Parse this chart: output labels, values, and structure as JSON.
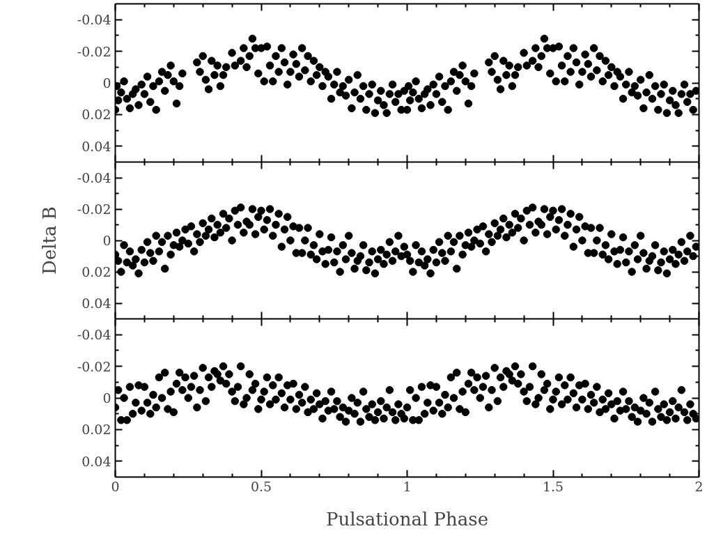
{
  "chart_data": [
    {
      "type": "scatter",
      "marker": "circle",
      "color": "#000000",
      "xlim": [
        0,
        2
      ],
      "ylim": [
        0.05,
        -0.05
      ],
      "tick_labels": "y",
      "xticks": [
        0,
        {
          "value": 0.1,
          "label": null
        },
        {
          "value": 0.2,
          "label": null
        },
        {
          "value": 0.3,
          "label": null
        },
        {
          "value": 0.4,
          "label": null
        },
        0.5,
        {
          "value": 0.6,
          "label": null
        },
        {
          "value": 0.7,
          "label": null
        },
        {
          "value": 0.8,
          "label": null
        },
        {
          "value": 0.9,
          "label": null
        },
        1,
        {
          "value": 1.1,
          "label": null
        },
        {
          "value": 1.2,
          "label": null
        },
        {
          "value": 1.3,
          "label": null
        },
        {
          "value": 1.4,
          "label": null
        },
        1.5,
        {
          "value": 1.6,
          "label": null
        },
        {
          "value": 1.7,
          "label": null
        },
        {
          "value": 1.8,
          "label": null
        },
        {
          "value": 1.9,
          "label": null
        },
        2
      ],
      "yticks": [
        -0.04,
        {
          "value": -0.03,
          "label": null
        },
        -0.02,
        {
          "value": -0.01,
          "label": null
        },
        0,
        {
          "value": 0.01,
          "label": null
        },
        0.02,
        {
          "value": 0.03,
          "label": null
        },
        0.04
      ],
      "x": [
        0,
        0.005,
        0.01,
        0.02,
        0.03,
        0.04,
        0.05,
        0.06,
        0.07,
        0.08,
        0.09,
        0.1,
        0.11,
        0.12,
        0.13,
        0.14,
        0.15,
        0.16,
        0.17,
        0.18,
        0.19,
        0.2,
        0.21,
        0.22,
        0.23,
        0.28,
        0.29,
        0.3,
        0.31,
        0.32,
        0.33,
        0.34,
        0.35,
        0.36,
        0.37,
        0.38,
        0.4,
        0.41,
        0.43,
        0.44,
        0.45,
        0.46,
        0.47,
        0.48,
        0.49,
        0.5,
        0.51,
        0.52,
        0.53,
        0.54,
        0.55,
        0.56,
        0.57,
        0.58,
        0.59,
        0.6,
        0.61,
        0.62,
        0.63,
        0.64,
        0.65,
        0.66,
        0.67,
        0.68,
        0.69,
        0.7,
        0.71,
        0.72,
        0.73,
        0.74,
        0.75,
        0.76,
        0.77,
        0.78,
        0.79,
        0.8,
        0.81,
        0.82,
        0.83,
        0.84,
        0.85,
        0.86,
        0.87,
        0.88,
        0.89,
        0.9,
        0.91,
        0.92,
        0.93,
        0.94,
        0.95,
        0.96,
        0.97,
        0.98,
        0.99,
        1,
        1.005,
        1.01,
        1.02,
        1.03,
        1.04,
        1.05,
        1.06,
        1.07,
        1.08,
        1.09,
        1.1,
        1.11,
        1.12,
        1.13,
        1.14,
        1.15,
        1.16,
        1.17,
        1.18,
        1.19,
        1.2,
        1.21,
        1.22,
        1.23,
        1.28,
        1.29,
        1.3,
        1.31,
        1.32,
        1.33,
        1.34,
        1.35,
        1.36,
        1.37,
        1.38,
        1.4,
        1.41,
        1.43,
        1.44,
        1.45,
        1.46,
        1.47,
        1.48,
        1.49,
        1.5,
        1.51,
        1.52,
        1.53,
        1.54,
        1.55,
        1.56,
        1.57,
        1.58,
        1.59,
        1.6,
        1.61,
        1.62,
        1.63,
        1.64,
        1.65,
        1.66,
        1.67,
        1.68,
        1.69,
        1.7,
        1.71,
        1.72,
        1.73,
        1.74,
        1.75,
        1.76,
        1.77,
        1.78,
        1.79,
        1.8,
        1.81,
        1.82,
        1.83,
        1.84,
        1.85,
        1.86,
        1.87,
        1.88,
        1.89,
        1.9,
        1.91,
        1.92,
        1.93,
        1.94,
        1.95,
        1.96,
        1.97,
        1.98,
        1.99
      ],
      "values": [
        0.017,
        0.002,
        0.011,
        0.006,
        -0.001,
        0.01,
        0.016,
        0.007,
        0.004,
        0.014,
        0.001,
        0.007,
        -0.004,
        0.012,
        0.002,
        0.017,
        -0.001,
        -0.007,
        0.005,
        -0.005,
        -0.011,
        -0.001,
        0.013,
        0.002,
        -0.006,
        -0.013,
        -0.007,
        -0.017,
        -0.002,
        0.004,
        -0.014,
        -0.005,
        -0.011,
        0.002,
        -0.005,
        -0.01,
        -0.019,
        -0.011,
        -0.014,
        -0.022,
        -0.01,
        -0.017,
        -0.028,
        -0.022,
        -0.006,
        -0.022,
        -0.001,
        -0.023,
        -0.011,
        -0.001,
        -0.017,
        -0.007,
        -0.022,
        -0.013,
        0.001,
        -0.007,
        -0.018,
        -0.012,
        -0.004,
        -0.022,
        -0.008,
        -0.017,
        -0.001,
        -0.014,
        -0.005,
        -0.01,
        0.002,
        -0.007,
        -0.004,
        0.01,
        0.001,
        -0.007,
        0.006,
        0.002,
        0.008,
        -0.002,
        0.016,
        0.006,
        -0.005,
        0.01,
        0.002,
        0.017,
        0.007,
        0.001,
        0.019,
        0.011,
        0.005,
        0.014,
        0.019,
        0.007,
        0.001,
        0.012,
        0.007,
        0.017,
        0.005,
        0.017,
        0.002,
        0.011,
        0.006,
        -0.001,
        0.01,
        0.016,
        0.007,
        0.004,
        0.014,
        0.001,
        0.007,
        -0.004,
        0.012,
        0.002,
        0.017,
        -0.001,
        -0.007,
        0.005,
        -0.005,
        -0.011,
        -0.001,
        0.013,
        0.002,
        -0.006,
        -0.013,
        -0.007,
        -0.017,
        -0.002,
        0.004,
        -0.014,
        -0.005,
        -0.011,
        0.002,
        -0.005,
        -0.01,
        -0.019,
        -0.011,
        -0.014,
        -0.022,
        -0.01,
        -0.017,
        -0.028,
        -0.022,
        -0.006,
        -0.022,
        -0.001,
        -0.023,
        -0.011,
        -0.001,
        -0.017,
        -0.007,
        -0.022,
        -0.013,
        0.001,
        -0.007,
        -0.018,
        -0.012,
        -0.004,
        -0.022,
        -0.008,
        -0.017,
        -0.001,
        -0.014,
        -0.005,
        -0.01,
        0.002,
        -0.007,
        -0.004,
        0.01,
        0.001,
        -0.007,
        0.006,
        0.002,
        0.008,
        -0.002,
        0.016,
        0.006,
        -0.005,
        0.01,
        0.002,
        0.017,
        0.007,
        0.001,
        0.019,
        0.011,
        0.005,
        0.014,
        0.019,
        0.007,
        0.001,
        0.012,
        0.007,
        0.017,
        0.005
      ]
    },
    {
      "type": "scatter",
      "marker": "circle",
      "color": "#000000",
      "xlim": [
        0,
        2
      ],
      "ylim": [
        0.05,
        -0.05
      ],
      "tick_labels": "y",
      "ylabel": "Delta B",
      "xticks": [
        0,
        {
          "value": 0.1,
          "label": null
        },
        {
          "value": 0.2,
          "label": null
        },
        {
          "value": 0.3,
          "label": null
        },
        {
          "value": 0.4,
          "label": null
        },
        0.5,
        {
          "value": 0.6,
          "label": null
        },
        {
          "value": 0.7,
          "label": null
        },
        {
          "value": 0.8,
          "label": null
        },
        {
          "value": 0.9,
          "label": null
        },
        1,
        {
          "value": 1.1,
          "label": null
        },
        {
          "value": 1.2,
          "label": null
        },
        {
          "value": 1.3,
          "label": null
        },
        {
          "value": 1.4,
          "label": null
        },
        1.5,
        {
          "value": 1.6,
          "label": null
        },
        {
          "value": 1.7,
          "label": null
        },
        {
          "value": 1.8,
          "label": null
        },
        {
          "value": 1.9,
          "label": null
        },
        2
      ],
      "yticks": [
        -0.04,
        {
          "value": -0.03,
          "label": null
        },
        -0.02,
        {
          "value": -0.01,
          "label": null
        },
        0,
        {
          "value": 0.01,
          "label": null
        },
        0.02,
        {
          "value": 0.03,
          "label": null
        },
        0.04
      ],
      "x": [
        0,
        0.01,
        0.02,
        0.03,
        0.04,
        0.05,
        0.06,
        0.07,
        0.08,
        0.09,
        0.1,
        0.11,
        0.12,
        0.13,
        0.14,
        0.15,
        0.16,
        0.17,
        0.18,
        0.19,
        0.2,
        0.21,
        0.22,
        0.23,
        0.24,
        0.25,
        0.26,
        0.27,
        0.28,
        0.29,
        0.3,
        0.31,
        0.32,
        0.33,
        0.34,
        0.35,
        0.36,
        0.37,
        0.38,
        0.39,
        0.4,
        0.41,
        0.42,
        0.43,
        0.44,
        0.45,
        0.46,
        0.47,
        0.48,
        0.49,
        0.5,
        0.51,
        0.52,
        0.53,
        0.54,
        0.55,
        0.56,
        0.57,
        0.58,
        0.59,
        0.6,
        0.61,
        0.62,
        0.63,
        0.64,
        0.65,
        0.66,
        0.67,
        0.68,
        0.69,
        0.7,
        0.71,
        0.72,
        0.73,
        0.74,
        0.75,
        0.76,
        0.77,
        0.78,
        0.79,
        0.8,
        0.81,
        0.82,
        0.83,
        0.84,
        0.85,
        0.86,
        0.87,
        0.88,
        0.89,
        0.9,
        0.91,
        0.92,
        0.93,
        0.94,
        0.95,
        0.96,
        0.97,
        0.98,
        0.99,
        1,
        1.01,
        1.02,
        1.03,
        1.04,
        1.05,
        1.06,
        1.07,
        1.08,
        1.09,
        1.1,
        1.11,
        1.12,
        1.13,
        1.14,
        1.15,
        1.16,
        1.17,
        1.18,
        1.19,
        1.2,
        1.21,
        1.22,
        1.23,
        1.24,
        1.25,
        1.26,
        1.27,
        1.28,
        1.29,
        1.3,
        1.31,
        1.32,
        1.33,
        1.34,
        1.35,
        1.36,
        1.37,
        1.38,
        1.39,
        1.4,
        1.41,
        1.42,
        1.43,
        1.44,
        1.45,
        1.46,
        1.47,
        1.48,
        1.49,
        1.5,
        1.51,
        1.52,
        1.53,
        1.54,
        1.55,
        1.56,
        1.57,
        1.58,
        1.59,
        1.6,
        1.61,
        1.62,
        1.63,
        1.64,
        1.65,
        1.66,
        1.67,
        1.68,
        1.69,
        1.7,
        1.71,
        1.72,
        1.73,
        1.74,
        1.75,
        1.76,
        1.77,
        1.78,
        1.79,
        1.8,
        1.81,
        1.82,
        1.83,
        1.84,
        1.85,
        1.86,
        1.87,
        1.88,
        1.89,
        1.9,
        1.91,
        1.92,
        1.93,
        1.94,
        1.95,
        1.96,
        1.97,
        1.98,
        1.99
      ],
      "values": [
        0.009,
        0.013,
        0.02,
        0.003,
        0.014,
        0.007,
        0.016,
        0.012,
        0.021,
        0.006,
        0.014,
        0.001,
        0.008,
        0.013,
        -0.003,
        0.007,
        0.001,
        0.018,
        -0.003,
        0.009,
        0.003,
        -0.005,
        0.004,
        0,
        -0.007,
        0.002,
        -0.009,
        0.007,
        -0.004,
        0.001,
        -0.011,
        -0.003,
        -0.007,
        -0.014,
        -0.002,
        -0.01,
        -0.005,
        -0.017,
        -0.008,
        -0.014,
        0,
        -0.019,
        -0.01,
        -0.021,
        -0.005,
        -0.012,
        -0.01,
        -0.02,
        -0.004,
        -0.015,
        -0.019,
        -0.007,
        -0.013,
        -0.02,
        -0.003,
        -0.01,
        -0.017,
        0.004,
        -0.007,
        -0.015,
        0,
        -0.009,
        0.008,
        -0.008,
        0.008,
        0,
        -0.008,
        0.009,
        0.003,
        0.012,
        -0.004,
        0.007,
        0.015,
        0.006,
        -0.002,
        0.014,
        0.007,
        0.02,
        0.003,
        0.012,
        -0.003,
        0.008,
        0.018,
        0.013,
        0.01,
        0.003,
        0.019,
        0.014,
        0.007,
        0.021,
        0.012,
        0.006,
        0.015,
        0.009,
        0.001,
        0.013,
        0.007,
        -0.003,
        0.01,
        0.004,
        0.009,
        0.013,
        0.02,
        0.003,
        0.014,
        0.007,
        0.016,
        0.012,
        0.021,
        0.006,
        0.014,
        0.001,
        0.008,
        0.013,
        -0.003,
        0.007,
        0.001,
        0.018,
        -0.003,
        0.009,
        0.003,
        -0.005,
        0.004,
        0,
        -0.007,
        0.002,
        -0.009,
        0.007,
        -0.004,
        0.001,
        -0.011,
        -0.003,
        -0.007,
        -0.014,
        -0.002,
        -0.01,
        -0.005,
        -0.017,
        -0.008,
        -0.014,
        0,
        -0.019,
        -0.01,
        -0.021,
        -0.005,
        -0.012,
        -0.01,
        -0.02,
        -0.004,
        -0.015,
        -0.019,
        -0.007,
        -0.013,
        -0.02,
        -0.003,
        -0.01,
        -0.017,
        0.004,
        -0.007,
        -0.015,
        0,
        -0.009,
        0.008,
        -0.008,
        0.008,
        0,
        -0.008,
        0.009,
        0.003,
        0.012,
        -0.004,
        0.007,
        0.015,
        0.006,
        -0.002,
        0.014,
        0.007,
        0.02,
        0.003,
        0.012,
        -0.003,
        0.008,
        0.018,
        0.013,
        0.01,
        0.003,
        0.019,
        0.014,
        0.007,
        0.021,
        0.012,
        0.006,
        0.015,
        0.009,
        0.001,
        0.013,
        0.007,
        -0.003,
        0.01,
        0.004
      ]
    },
    {
      "type": "scatter",
      "marker": "circle",
      "color": "#000000",
      "xlim": [
        0,
        2
      ],
      "ylim": [
        0.05,
        -0.05
      ],
      "xlabel": "Pulsational Phase",
      "xticks": [
        0,
        {
          "value": 0.1,
          "label": null
        },
        {
          "value": 0.2,
          "label": null
        },
        {
          "value": 0.3,
          "label": null
        },
        {
          "value": 0.4,
          "label": null
        },
        0.5,
        {
          "value": 0.6,
          "label": null
        },
        {
          "value": 0.7,
          "label": null
        },
        {
          "value": 0.8,
          "label": null
        },
        {
          "value": 0.9,
          "label": null
        },
        1,
        {
          "value": 1.1,
          "label": null
        },
        {
          "value": 1.2,
          "label": null
        },
        {
          "value": 1.3,
          "label": null
        },
        {
          "value": 1.4,
          "label": null
        },
        1.5,
        {
          "value": 1.6,
          "label": null
        },
        {
          "value": 1.7,
          "label": null
        },
        {
          "value": 1.8,
          "label": null
        },
        {
          "value": 1.9,
          "label": null
        },
        2
      ],
      "yticks": [
        -0.04,
        {
          "value": -0.03,
          "label": null
        },
        -0.02,
        {
          "value": -0.01,
          "label": null
        },
        0,
        {
          "value": 0.01,
          "label": null
        },
        0.02,
        {
          "value": 0.03,
          "label": null
        },
        0.04
      ],
      "x": [
        0,
        0.01,
        0.02,
        0.03,
        0.04,
        0.05,
        0.06,
        0.07,
        0.08,
        0.09,
        0.1,
        0.11,
        0.12,
        0.13,
        0.14,
        0.15,
        0.16,
        0.17,
        0.18,
        0.19,
        0.2,
        0.21,
        0.22,
        0.23,
        0.24,
        0.25,
        0.26,
        0.27,
        0.28,
        0.29,
        0.3,
        0.31,
        0.32,
        0.33,
        0.34,
        0.35,
        0.36,
        0.37,
        0.38,
        0.39,
        0.4,
        0.41,
        0.42,
        0.43,
        0.44,
        0.45,
        0.46,
        0.47,
        0.48,
        0.49,
        0.5,
        0.51,
        0.52,
        0.53,
        0.54,
        0.55,
        0.56,
        0.57,
        0.58,
        0.59,
        0.6,
        0.61,
        0.62,
        0.63,
        0.64,
        0.65,
        0.66,
        0.67,
        0.68,
        0.69,
        0.7,
        0.71,
        0.72,
        0.73,
        0.74,
        0.75,
        0.76,
        0.77,
        0.78,
        0.79,
        0.8,
        0.81,
        0.82,
        0.83,
        0.84,
        0.85,
        0.86,
        0.87,
        0.88,
        0.89,
        0.9,
        0.91,
        0.92,
        0.93,
        0.94,
        0.95,
        0.96,
        0.97,
        0.98,
        0.99,
        1,
        1.01,
        1.02,
        1.03,
        1.04,
        1.05,
        1.06,
        1.07,
        1.08,
        1.09,
        1.1,
        1.11,
        1.12,
        1.13,
        1.14,
        1.15,
        1.16,
        1.17,
        1.18,
        1.19,
        1.2,
        1.21,
        1.22,
        1.23,
        1.24,
        1.25,
        1.26,
        1.27,
        1.28,
        1.29,
        1.3,
        1.31,
        1.32,
        1.33,
        1.34,
        1.35,
        1.36,
        1.37,
        1.38,
        1.39,
        1.4,
        1.41,
        1.42,
        1.43,
        1.44,
        1.45,
        1.46,
        1.47,
        1.48,
        1.49,
        1.5,
        1.51,
        1.52,
        1.53,
        1.54,
        1.55,
        1.56,
        1.57,
        1.58,
        1.59,
        1.6,
        1.61,
        1.62,
        1.63,
        1.64,
        1.65,
        1.66,
        1.67,
        1.68,
        1.69,
        1.7,
        1.71,
        1.72,
        1.73,
        1.74,
        1.75,
        1.76,
        1.77,
        1.78,
        1.79,
        1.8,
        1.81,
        1.82,
        1.83,
        1.84,
        1.85,
        1.86,
        1.87,
        1.88,
        1.89,
        1.9,
        1.91,
        1.92,
        1.93,
        1.94,
        1.95,
        1.96,
        1.97,
        1.98,
        1.99
      ],
      "values": [
        0.006,
        -0.005,
        0.014,
        0,
        0.014,
        -0.007,
        0.01,
        0.003,
        -0.008,
        0.008,
        -0.007,
        0.003,
        0.01,
        -0.002,
        0.006,
        -0.013,
        0,
        -0.016,
        0.007,
        -0.004,
        0.009,
        -0.009,
        -0.016,
        -0.005,
        -0.013,
        0,
        -0.007,
        -0.014,
        0.006,
        -0.005,
        -0.019,
        0.002,
        -0.013,
        -0.007,
        -0.017,
        -0.015,
        -0.011,
        -0.02,
        -0.009,
        -0.015,
        -0.004,
        0.002,
        -0.007,
        -0.02,
        0.004,
        0,
        -0.015,
        -0.005,
        -0.009,
        0.007,
        0.001,
        -0.004,
        -0.013,
        0.004,
        -0.008,
        0.001,
        -0.013,
        -0.003,
        0.006,
        -0.008,
        0.001,
        -0.009,
        0.007,
        -0.002,
        0.003,
        -0.007,
        0.009,
        0.001,
        0.007,
        -0.003,
        0.004,
        0.013,
        0.002,
        0.008,
        -0.004,
        0.007,
        0.002,
        0.012,
        0.006,
        0.015,
        0.008,
        0,
        0.01,
        0.003,
        0.015,
        -0.004,
        0.007,
        0.012,
        0.004,
        0.014,
        0.009,
        0.002,
        0.013,
        0.006,
        -0.005,
        0.009,
        0.014,
        0.004,
        0.01,
        0.013,
        0.006,
        -0.005,
        0.014,
        0,
        0.014,
        -0.007,
        0.01,
        0.003,
        -0.008,
        0.008,
        -0.007,
        0.003,
        0.01,
        -0.002,
        0.006,
        -0.013,
        0,
        -0.016,
        0.007,
        -0.004,
        0.009,
        -0.009,
        -0.016,
        -0.005,
        -0.013,
        0,
        -0.007,
        -0.014,
        0.006,
        -0.005,
        -0.019,
        0.002,
        -0.013,
        -0.007,
        -0.017,
        -0.015,
        -0.011,
        -0.02,
        -0.009,
        -0.015,
        -0.004,
        0.002,
        -0.007,
        -0.02,
        0.004,
        0,
        -0.015,
        -0.005,
        -0.009,
        0.007,
        0.001,
        -0.004,
        -0.013,
        0.004,
        -0.008,
        0.001,
        -0.013,
        -0.003,
        0.006,
        -0.008,
        0.001,
        -0.009,
        0.007,
        -0.002,
        0.003,
        -0.007,
        0.009,
        0.001,
        0.007,
        -0.003,
        0.004,
        0.013,
        0.002,
        0.008,
        -0.004,
        0.007,
        0.002,
        0.012,
        0.006,
        0.015,
        0.008,
        0,
        0.01,
        0.003,
        0.015,
        -0.004,
        0.007,
        0.012,
        0.004,
        0.014,
        0.009,
        0.002,
        0.013,
        0.006,
        -0.005,
        0.009,
        0.014,
        0.004,
        0.01,
        0.013
      ]
    }
  ]
}
